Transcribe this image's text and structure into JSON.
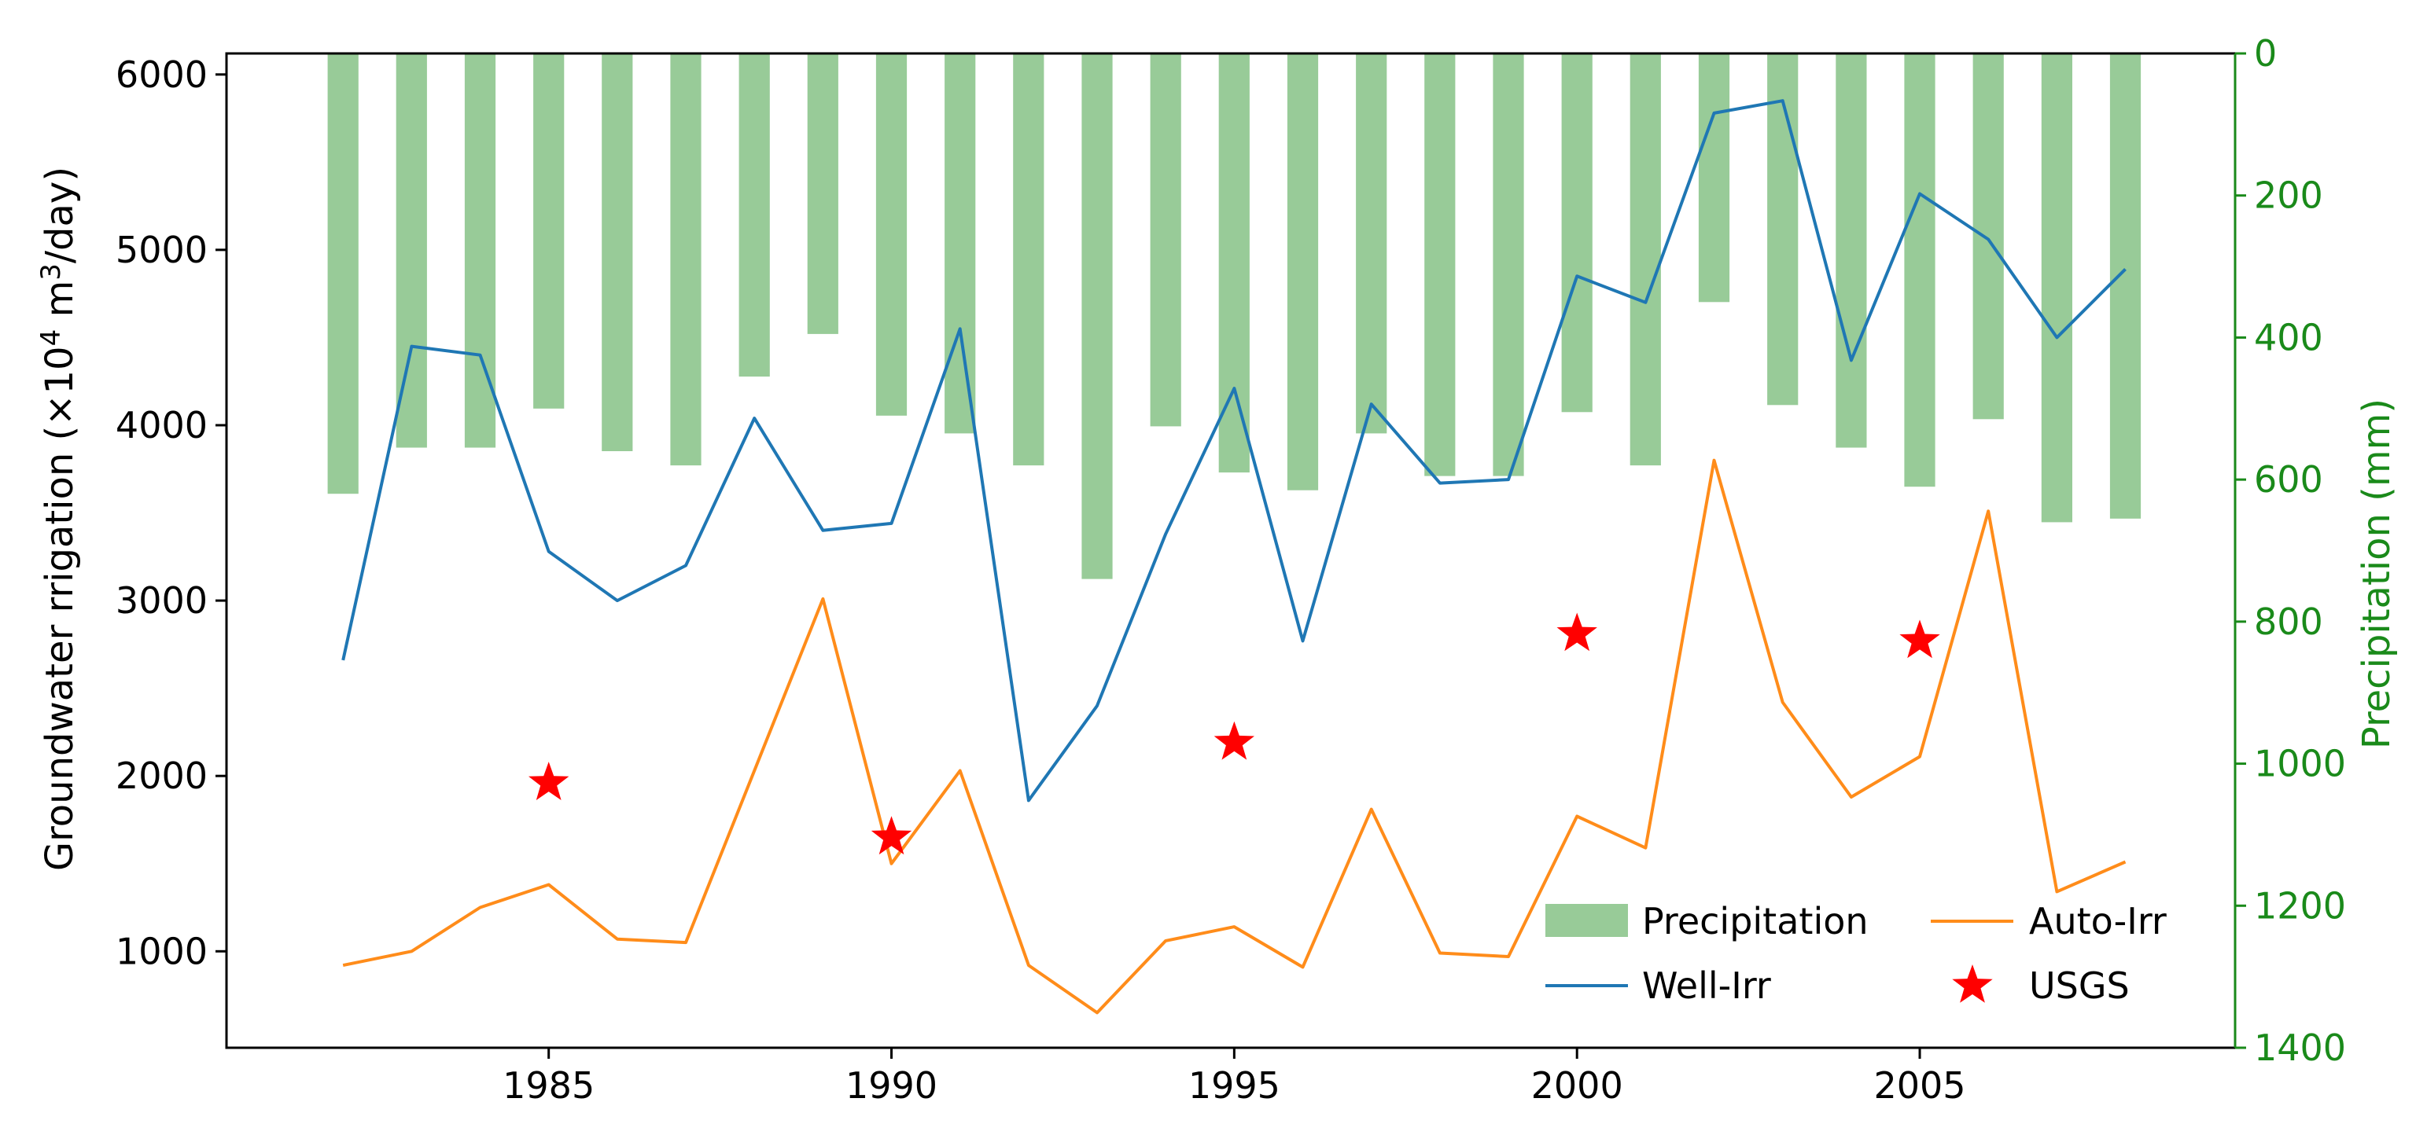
{
  "chart_data": {
    "type": "bar+line",
    "title": "",
    "xlabel": "",
    "ylabel_left": "Groundwater rrigation (×10⁴ m³/day)",
    "ylabel_left_parts": {
      "pre": "Groundwater rrigation (×10",
      "exp1": "4",
      "mid": " m",
      "exp2": "3",
      "post": "/day)"
    },
    "ylabel_right": "Precipitation (mm)",
    "xlim": [
      1980.3,
      2009.6
    ],
    "ylim_left": [
      450,
      6120
    ],
    "ylim_right": [
      0,
      1400
    ],
    "right_axis_inverted": true,
    "x_ticks": [
      1985,
      1990,
      1995,
      2000,
      2005
    ],
    "y_left_ticks": [
      1000,
      2000,
      3000,
      4000,
      5000,
      6000
    ],
    "y_right_ticks": [
      0,
      200,
      400,
      600,
      800,
      1000,
      1200,
      1400
    ],
    "years": [
      1982,
      1983,
      1984,
      1985,
      1986,
      1987,
      1988,
      1989,
      1990,
      1991,
      1992,
      1993,
      1994,
      1995,
      1996,
      1997,
      1998,
      1999,
      2000,
      2001,
      2002,
      2003,
      2004,
      2005,
      2006,
      2007,
      2008
    ],
    "series": [
      {
        "name": "Precipitation",
        "type": "bar",
        "axis": "right",
        "color": "#98cb98",
        "values": [
          620,
          555,
          555,
          500,
          560,
          580,
          455,
          395,
          510,
          535,
          580,
          740,
          525,
          590,
          615,
          535,
          595,
          595,
          505,
          580,
          350,
          495,
          555,
          610,
          515,
          660,
          655
        ]
      },
      {
        "name": "Well-Irr",
        "type": "line",
        "axis": "left",
        "color": "#1f77b4",
        "values": [
          2660,
          4450,
          4400,
          3280,
          3000,
          3200,
          4040,
          3400,
          3440,
          4550,
          1860,
          2400,
          3380,
          4210,
          2770,
          4120,
          3670,
          3690,
          4850,
          4700,
          5780,
          5850,
          4370,
          5320,
          5060,
          4500,
          4890
        ]
      },
      {
        "name": "Auto-Irr",
        "type": "line",
        "axis": "left",
        "color": "#ff8c1a",
        "values": [
          920,
          1000,
          1250,
          1380,
          1070,
          1050,
          2030,
          3010,
          1500,
          2030,
          920,
          650,
          1060,
          1140,
          910,
          1810,
          990,
          970,
          1770,
          1590,
          3800,
          2420,
          1880,
          2110,
          3510,
          1340,
          1510
        ]
      },
      {
        "name": "USGS",
        "type": "scatter",
        "axis": "left",
        "color": "#ff0000",
        "marker": "star",
        "x": [
          1985,
          1990,
          1995,
          2000,
          2005
        ],
        "values": [
          1960,
          1650,
          2190,
          2810,
          2770
        ]
      }
    ],
    "legend": {
      "position": "lower-right",
      "entries": [
        "Precipitation",
        "Auto-Irr",
        "Well-Irr",
        "USGS"
      ]
    },
    "colors": {
      "right_axis": "#1a8a1a",
      "frame": "#000000"
    }
  }
}
